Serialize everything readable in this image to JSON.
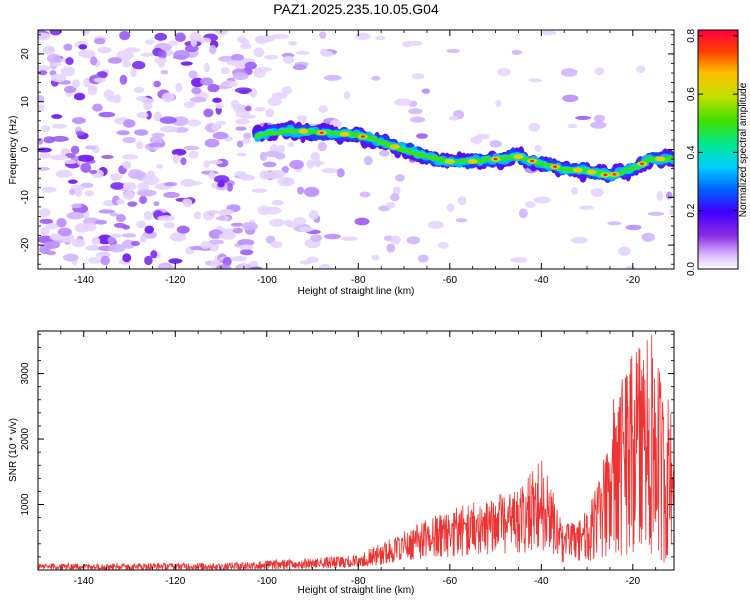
{
  "title": "PAZ1.2025.235.10.05.G04",
  "chart_data": [
    {
      "type": "heatmap",
      "xlabel": "Height of straight line (km)",
      "ylabel": "Frequency (Hz)",
      "xlim": [
        -150,
        -11
      ],
      "ylim": [
        -25,
        25
      ],
      "x_ticks": [
        -140,
        -120,
        -100,
        -80,
        -60,
        -40,
        -20
      ],
      "y_ticks": [
        -20,
        -10,
        0,
        10,
        20
      ],
      "colorbar": {
        "label": "Normalized spectral amplitude",
        "range": [
          0,
          0.82
        ],
        "ticks": [
          0.0,
          0.2,
          0.4,
          0.6,
          0.8
        ],
        "colormap": [
          "#ffffff",
          "#d8b8ff",
          "#8a2be2",
          "#4000ff",
          "#0060ff",
          "#00d0ff",
          "#00e890",
          "#40e000",
          "#c0e000",
          "#ffc000",
          "#ff4000",
          "#ff0040"
        ]
      },
      "ridge": {
        "x": [
          -102,
          -95,
          -88,
          -80,
          -75,
          -70,
          -65,
          -60,
          -55,
          -50,
          -45,
          -40,
          -35,
          -30,
          -25,
          -20,
          -16,
          -11
        ],
        "y": [
          3,
          4,
          3.5,
          3,
          1.5,
          0,
          -1.5,
          -2.5,
          -2.5,
          -2,
          -1.5,
          -3,
          -4,
          -4.5,
          -5.5,
          -4,
          -2,
          -2
        ]
      }
    },
    {
      "type": "line",
      "xlabel": "Height of straight line (km)",
      "ylabel": "SNR (10 * v/v)",
      "xlim": [
        -150,
        -11
      ],
      "ylim": [
        0,
        3650
      ],
      "x_ticks": [
        -140,
        -120,
        -100,
        -80,
        -60,
        -40,
        -20
      ],
      "y_ticks": [
        1000,
        2000,
        3000
      ],
      "line_color": "#ee3333",
      "envelope": {
        "x": [
          -150,
          -110,
          -100,
          -90,
          -80,
          -75,
          -70,
          -60,
          -50,
          -45,
          -40,
          -35,
          -30,
          -27,
          -25,
          -22,
          -19,
          -17,
          -15,
          -13,
          -11
        ],
        "y_max": [
          100,
          110,
          150,
          180,
          230,
          420,
          600,
          950,
          1150,
          1200,
          1750,
          700,
          900,
          1500,
          2500,
          3000,
          3500,
          3650,
          3550,
          2600,
          2800
        ],
        "y_min": [
          5,
          5,
          10,
          20,
          40,
          80,
          150,
          200,
          250,
          250,
          300,
          100,
          150,
          100,
          300,
          200,
          300,
          300,
          200,
          100,
          500
        ]
      }
    }
  ]
}
